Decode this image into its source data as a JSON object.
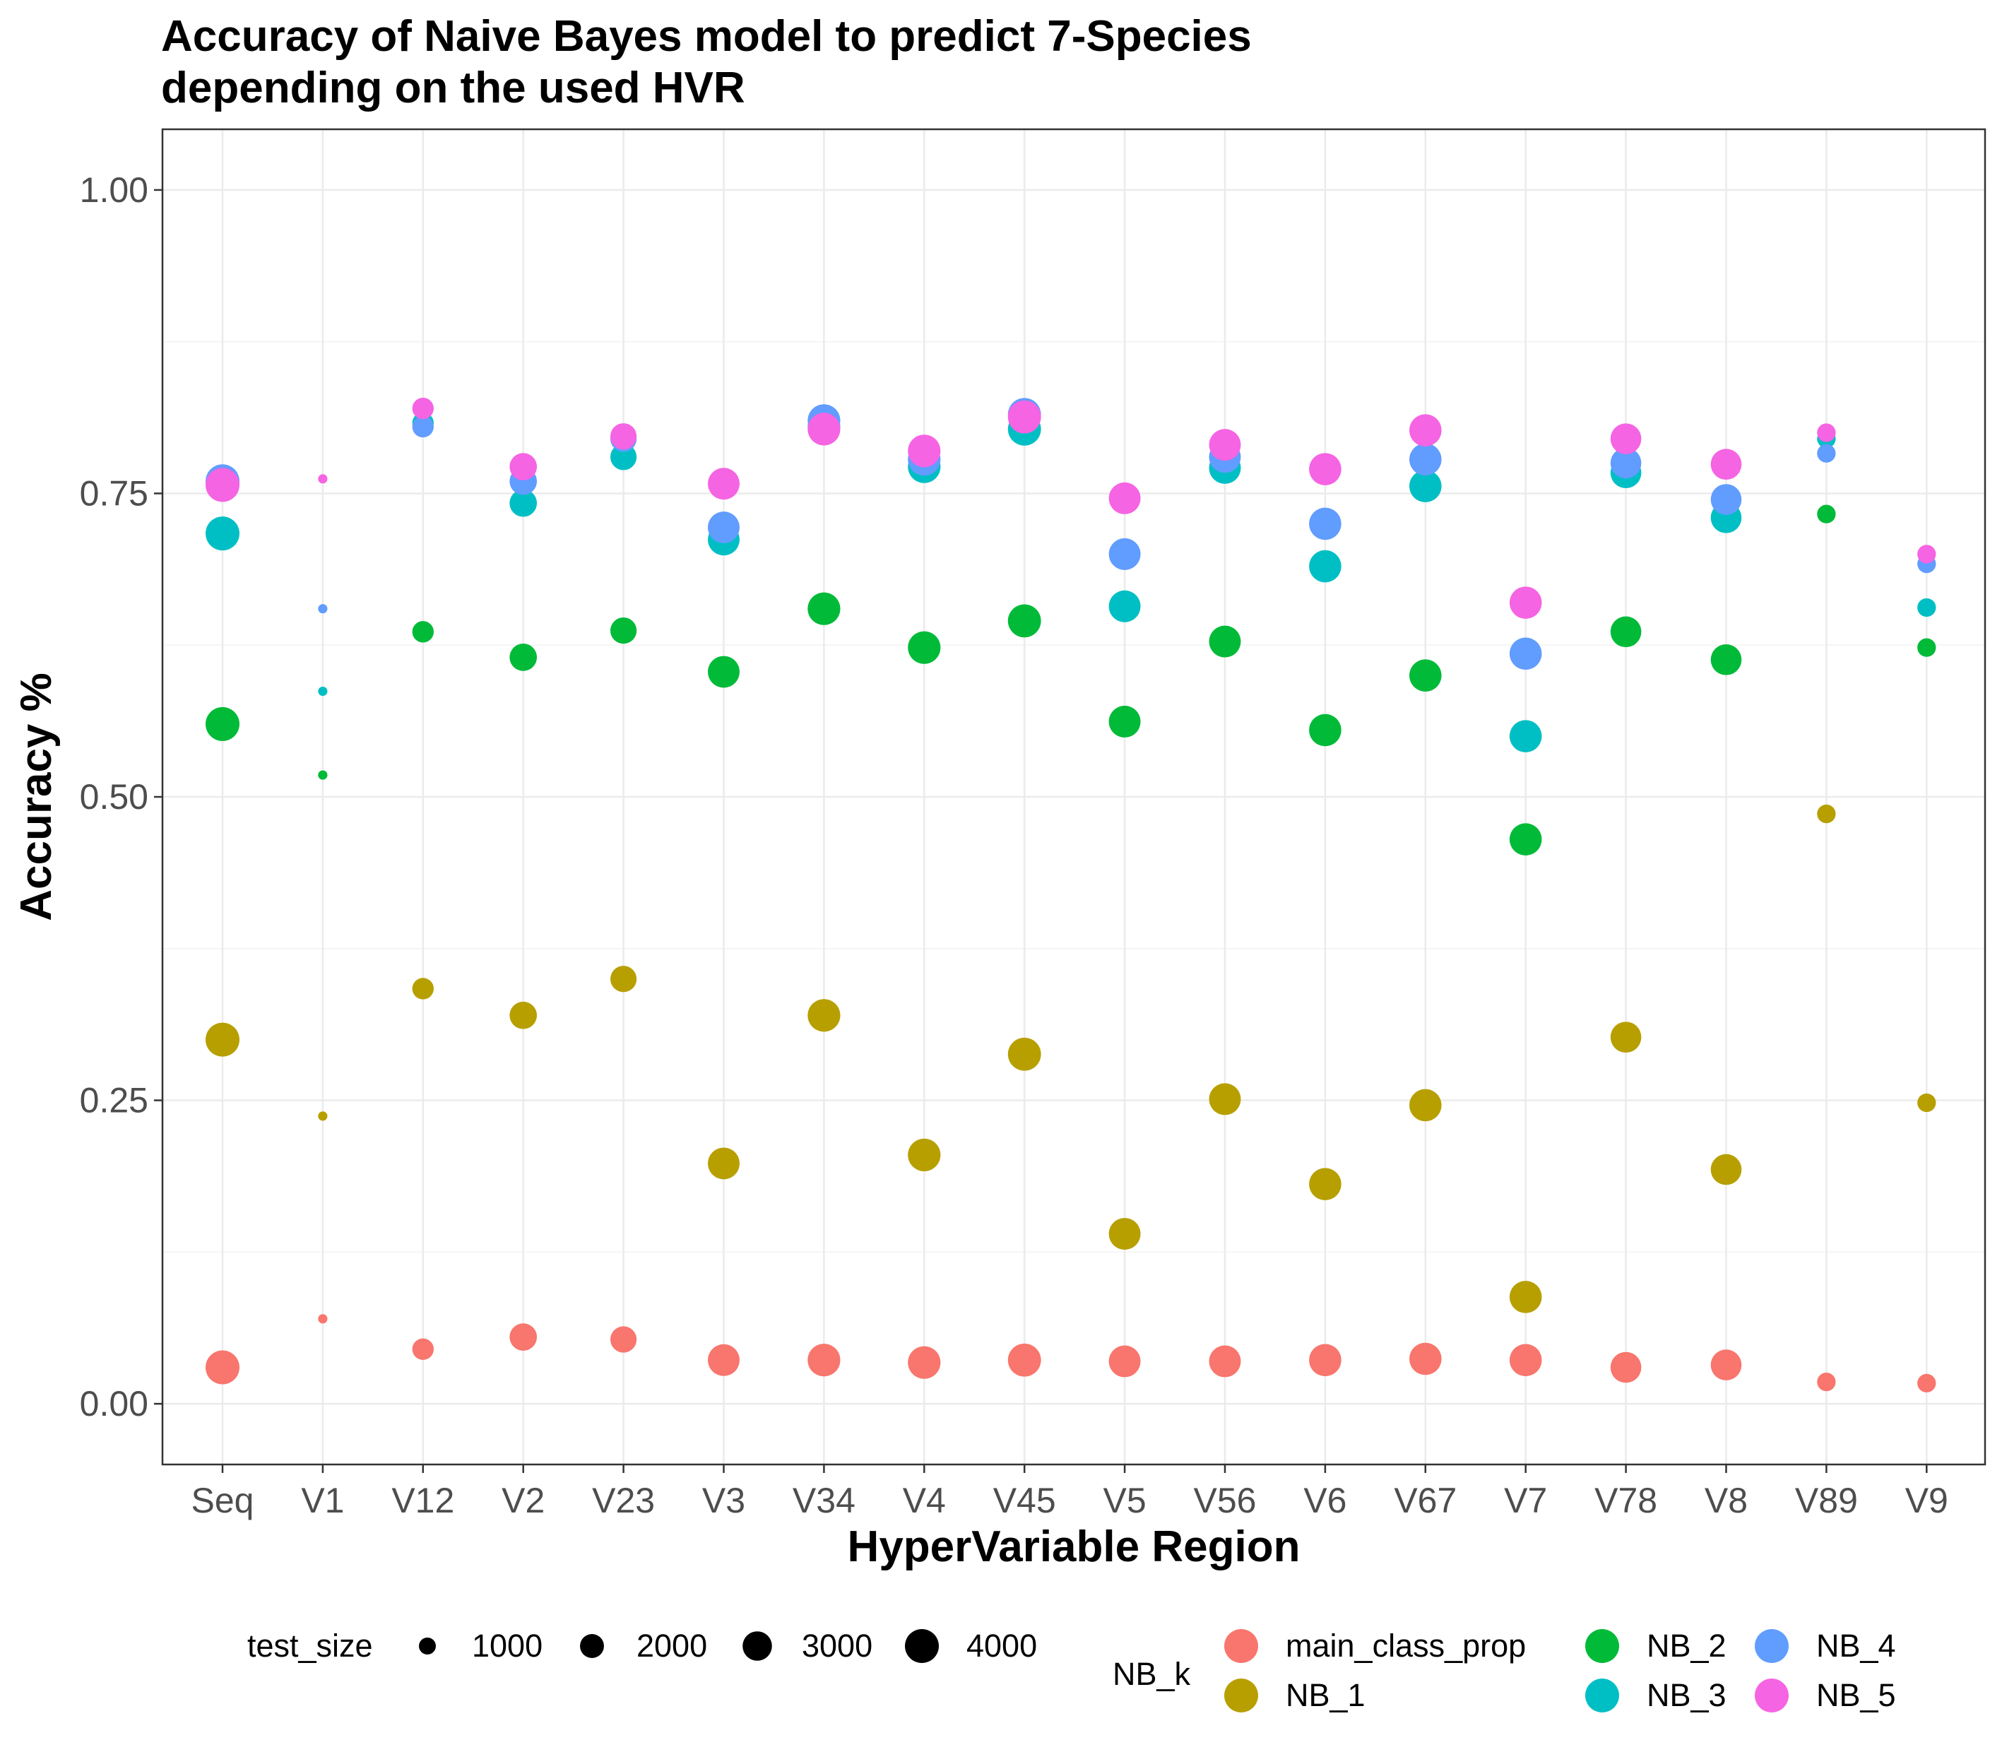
{
  "chart_data": {
    "type": "scatter",
    "title_line1": "Accuracy of Naive Bayes model to predict 7-Species",
    "title_line2": "depending on the used HVR",
    "xlabel": "HyperVariable Region",
    "ylabel": "Accuracy %",
    "ylim": [
      -0.05,
      1.05
    ],
    "yticks": [
      0.0,
      0.25,
      0.5,
      0.75,
      1.0
    ],
    "ytick_labels": [
      "0.00",
      "0.25",
      "0.50",
      "0.75",
      "1.00"
    ],
    "grid": true,
    "legend_position": "bottom",
    "categories": [
      "Seq",
      "V1",
      "V12",
      "V2",
      "V23",
      "V3",
      "V34",
      "V4",
      "V45",
      "V5",
      "V56",
      "V6",
      "V67",
      "V7",
      "V78",
      "V8",
      "V89",
      "V9"
    ],
    "test_size": [
      4000,
      300,
      1600,
      2600,
      2400,
      3500,
      3700,
      3700,
      3800,
      3500,
      3500,
      3600,
      3600,
      3600,
      3300,
      3300,
      1200,
      1200
    ],
    "size_legend": {
      "title": "test_size",
      "values": [
        1000,
        2000,
        3000,
        4000
      ],
      "labels": [
        "1000",
        "2000",
        "3000",
        "4000"
      ]
    },
    "color_legend": {
      "title": "NB_k"
    },
    "series": [
      {
        "name": "main_class_prop",
        "color": "#F8766D",
        "values": [
          0.03,
          0.07,
          0.045,
          0.055,
          0.053,
          0.036,
          0.036,
          0.034,
          0.036,
          0.035,
          0.035,
          0.036,
          0.037,
          0.036,
          0.03,
          0.032,
          0.018,
          0.017
        ]
      },
      {
        "name": "NB_1",
        "color": "#B79F00",
        "values": [
          0.3,
          0.237,
          0.342,
          0.32,
          0.35,
          0.198,
          0.32,
          0.205,
          0.288,
          0.14,
          0.251,
          0.181,
          0.246,
          0.088,
          0.302,
          0.193,
          0.486,
          0.248
        ]
      },
      {
        "name": "NB_2",
        "color": "#00BA38",
        "values": [
          0.56,
          0.518,
          0.636,
          0.615,
          0.637,
          0.603,
          0.655,
          0.623,
          0.645,
          0.562,
          0.628,
          0.555,
          0.6,
          0.465,
          0.636,
          0.613,
          0.733,
          0.623
        ]
      },
      {
        "name": "NB_3",
        "color": "#00BFC4",
        "values": [
          0.717,
          0.587,
          0.808,
          0.742,
          0.78,
          0.712,
          0.805,
          0.772,
          0.803,
          0.657,
          0.771,
          0.69,
          0.756,
          0.55,
          0.767,
          0.73,
          0.795,
          0.656
        ]
      },
      {
        "name": "NB_4",
        "color": "#619CFF",
        "values": [
          0.76,
          0.655,
          0.805,
          0.76,
          0.795,
          0.722,
          0.81,
          0.778,
          0.815,
          0.7,
          0.78,
          0.725,
          0.778,
          0.618,
          0.775,
          0.745,
          0.783,
          0.692
        ]
      },
      {
        "name": "NB_5",
        "color": "#F564E3",
        "values": [
          0.757,
          0.762,
          0.82,
          0.772,
          0.797,
          0.758,
          0.803,
          0.785,
          0.813,
          0.746,
          0.79,
          0.77,
          0.802,
          0.66,
          0.795,
          0.774,
          0.8,
          0.7
        ]
      }
    ]
  }
}
